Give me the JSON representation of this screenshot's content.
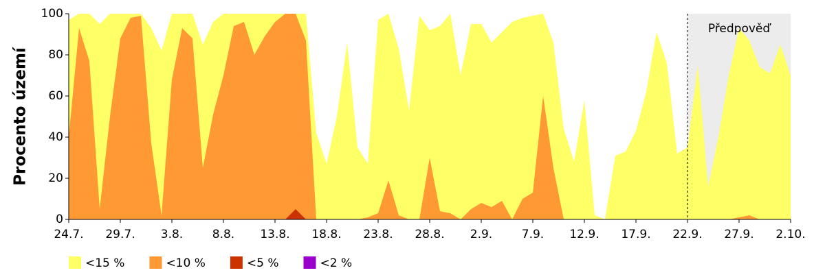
{
  "chart_data": {
    "type": "area",
    "y_label": "Procento území",
    "categories": [
      "24.7.",
      null,
      null,
      null,
      null,
      "29.7.",
      null,
      null,
      null,
      null,
      "3.8.",
      null,
      null,
      null,
      null,
      "8.8.",
      null,
      null,
      null,
      null,
      "13.8.",
      null,
      null,
      null,
      null,
      "18.8.",
      null,
      null,
      null,
      null,
      "23.8.",
      null,
      null,
      null,
      null,
      "28.8.",
      null,
      null,
      null,
      null,
      "2.9.",
      null,
      null,
      null,
      null,
      "7.9.",
      null,
      null,
      null,
      null,
      "12.9.",
      null,
      null,
      null,
      null,
      "17.9.",
      null,
      null,
      null,
      null,
      "22.9.",
      null,
      null,
      null,
      null,
      "27.9.",
      null,
      null,
      null,
      null,
      "2.10."
    ],
    "series": [
      {
        "name": "<15 %",
        "color": "#ffff66",
        "values": [
          97,
          100,
          100,
          95,
          100,
          100,
          100,
          100,
          93,
          82,
          100,
          100,
          100,
          85,
          96,
          100,
          100,
          100,
          100,
          100,
          100,
          100,
          100,
          100,
          42,
          27,
          50,
          86,
          35,
          27,
          97,
          100,
          83,
          53,
          99,
          92,
          94,
          100,
          70,
          95,
          95,
          86,
          91,
          96,
          98,
          99,
          100,
          86,
          44,
          28,
          58,
          2,
          0,
          31,
          33,
          43,
          62,
          91,
          76,
          32,
          35,
          75,
          16,
          40,
          70,
          93,
          87,
          74,
          71,
          85,
          70
        ]
      },
      {
        "name": "<10 %",
        "color": "#ff9933",
        "values": [
          40,
          93,
          77,
          5,
          50,
          88,
          98,
          99,
          37,
          2,
          68,
          93,
          88,
          25,
          51,
          70,
          94,
          96,
          80,
          89,
          96,
          100,
          100,
          87,
          0,
          0,
          0,
          0,
          0,
          1,
          3,
          19,
          2,
          0,
          0,
          30,
          4,
          3,
          0,
          5,
          8,
          6,
          9,
          0,
          10,
          13,
          60,
          25,
          0,
          0,
          0,
          0,
          0,
          0,
          0,
          0,
          0,
          0,
          0,
          0,
          0,
          0,
          0,
          0,
          0,
          1,
          2,
          0,
          0,
          0,
          0
        ]
      },
      {
        "name": "<5 %",
        "color": "#cc3300",
        "values": [
          0,
          0,
          0,
          0,
          0,
          0,
          0,
          0,
          0,
          0,
          0,
          0,
          0,
          0,
          0,
          0,
          0,
          0,
          0,
          0,
          0,
          0,
          5,
          0,
          0,
          0,
          0,
          0,
          0,
          0,
          0,
          0,
          0,
          0,
          0,
          0,
          0,
          0,
          0,
          0,
          0,
          0,
          0,
          0,
          0,
          0,
          0,
          0,
          0,
          0,
          0,
          0,
          0,
          0,
          0,
          0,
          0,
          0,
          0,
          0,
          0,
          0,
          0,
          0,
          0,
          0,
          0,
          0,
          0,
          0,
          0
        ]
      },
      {
        "name": "<2 %",
        "color": "#9900cc",
        "values": [
          0,
          0,
          0,
          0,
          0,
          0,
          0,
          0,
          0,
          0,
          0,
          0,
          0,
          0,
          0,
          0,
          0,
          0,
          0,
          0,
          0,
          0,
          0,
          0,
          0,
          0,
          0,
          0,
          0,
          0,
          0,
          0,
          0,
          0,
          0,
          0,
          0,
          0,
          0,
          0,
          0,
          0,
          0,
          0,
          0,
          0,
          0,
          0,
          0,
          0,
          0,
          0,
          0,
          0,
          0,
          0,
          0,
          0,
          0,
          0,
          0,
          0,
          0,
          0,
          0,
          0,
          0,
          0,
          0,
          0,
          0
        ]
      }
    ],
    "forecast": {
      "label": "Předpověď",
      "start": "22.9."
    },
    "ylim": [
      0,
      100
    ],
    "yticks": [
      0,
      20,
      40,
      60,
      80,
      100
    ]
  }
}
